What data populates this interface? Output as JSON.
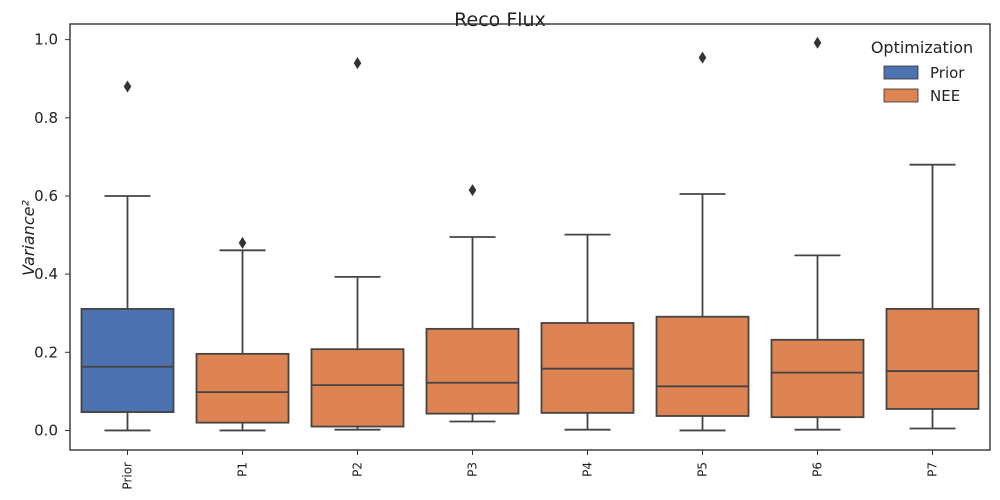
{
  "chart_data": {
    "type": "box",
    "title": "Reco Flux",
    "xlabel": "",
    "ylabel": "Variance²",
    "ylim": [
      -0.05,
      1.04
    ],
    "yticks": [
      0.0,
      0.2,
      0.4,
      0.6,
      0.8,
      1.0
    ],
    "ytick_labels": [
      "0.0",
      "0.2",
      "0.4",
      "0.6",
      "0.8",
      "1.0"
    ],
    "grid": false,
    "legend": {
      "title": "Optimization",
      "placement": "top-right",
      "entries": [
        {
          "label": "Prior",
          "color": "#4c72b0"
        },
        {
          "label": "NEE",
          "color": "#dd8452"
        }
      ]
    },
    "categories": [
      "Prior",
      "P1",
      "P2",
      "P3",
      "P4",
      "P5",
      "P6",
      "P7"
    ],
    "boxes": [
      {
        "category": "Prior",
        "group": "Prior",
        "whisker_low": 0.0,
        "q1": 0.047,
        "median": 0.163,
        "q3": 0.311,
        "whisker_high": 0.6,
        "outliers": [
          0.88
        ]
      },
      {
        "category": "P1",
        "group": "NEE",
        "whisker_low": 0.0,
        "q1": 0.02,
        "median": 0.098,
        "q3": 0.196,
        "whisker_high": 0.461,
        "outliers": [
          0.48
        ]
      },
      {
        "category": "P2",
        "group": "NEE",
        "whisker_low": 0.002,
        "q1": 0.01,
        "median": 0.116,
        "q3": 0.208,
        "whisker_high": 0.393,
        "outliers": [
          0.94
        ]
      },
      {
        "category": "P3",
        "group": "NEE",
        "whisker_low": 0.023,
        "q1": 0.043,
        "median": 0.122,
        "q3": 0.26,
        "whisker_high": 0.495,
        "outliers": [
          0.615
        ]
      },
      {
        "category": "P4",
        "group": "NEE",
        "whisker_low": 0.002,
        "q1": 0.045,
        "median": 0.158,
        "q3": 0.275,
        "whisker_high": 0.501,
        "outliers": []
      },
      {
        "category": "P5",
        "group": "NEE",
        "whisker_low": 0.0,
        "q1": 0.037,
        "median": 0.113,
        "q3": 0.291,
        "whisker_high": 0.605,
        "outliers": [
          0.954
        ]
      },
      {
        "category": "P6",
        "group": "NEE",
        "whisker_low": 0.002,
        "q1": 0.034,
        "median": 0.148,
        "q3": 0.232,
        "whisker_high": 0.448,
        "outliers": [
          0.992
        ]
      },
      {
        "category": "P7",
        "group": "NEE",
        "whisker_low": 0.005,
        "q1": 0.055,
        "median": 0.152,
        "q3": 0.311,
        "whisker_high": 0.68,
        "outliers": []
      }
    ]
  }
}
